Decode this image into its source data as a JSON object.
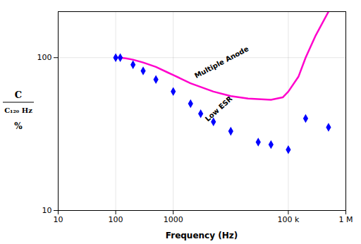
{
  "chart_data": {
    "type": "line",
    "xlabel": "Frequency (Hz)",
    "ylabel": [
      "C",
      "C₁₂₀ Hz",
      "%"
    ],
    "log": true,
    "grid": true,
    "xlim": [
      10,
      1000000
    ],
    "ylim": [
      10,
      200
    ],
    "xticks": [
      10,
      100,
      1000,
      {
        "value": 100000,
        "label": "100 k"
      },
      {
        "value": 1000000,
        "label": "1 M"
      }
    ],
    "yticks": [
      10,
      100
    ],
    "series": [
      {
        "type": "line",
        "color": "#ff00cc",
        "line_style": "solid",
        "x": [
          100,
          120,
          150,
          200,
          300,
          500,
          800,
          1000,
          2000,
          5000,
          10000,
          20000,
          50000,
          80000,
          100000,
          150000,
          200000,
          300000,
          500000
        ],
        "values": [
          100,
          100,
          99,
          97,
          93,
          87,
          80,
          77,
          68,
          60,
          56,
          54,
          53,
          55,
          60,
          75,
          100,
          140,
          200
        ]
      },
      {
        "type": "scatter",
        "color": "#0000ff",
        "marker": "diamond",
        "x": [
          100,
          120,
          200,
          300,
          500,
          1000,
          2000,
          3000,
          5000,
          10000,
          30000,
          50000,
          100000,
          200000,
          500000
        ],
        "values": [
          100,
          100,
          90,
          82,
          72,
          60,
          50,
          43,
          38,
          33,
          28,
          27,
          25,
          40,
          35
        ]
      }
    ],
    "annotations": [
      {
        "text": "Multiple Anode",
        "x": 2500,
        "y": 73
      },
      {
        "text": "Low ESR",
        "x": 4000,
        "y": 38
      }
    ]
  }
}
